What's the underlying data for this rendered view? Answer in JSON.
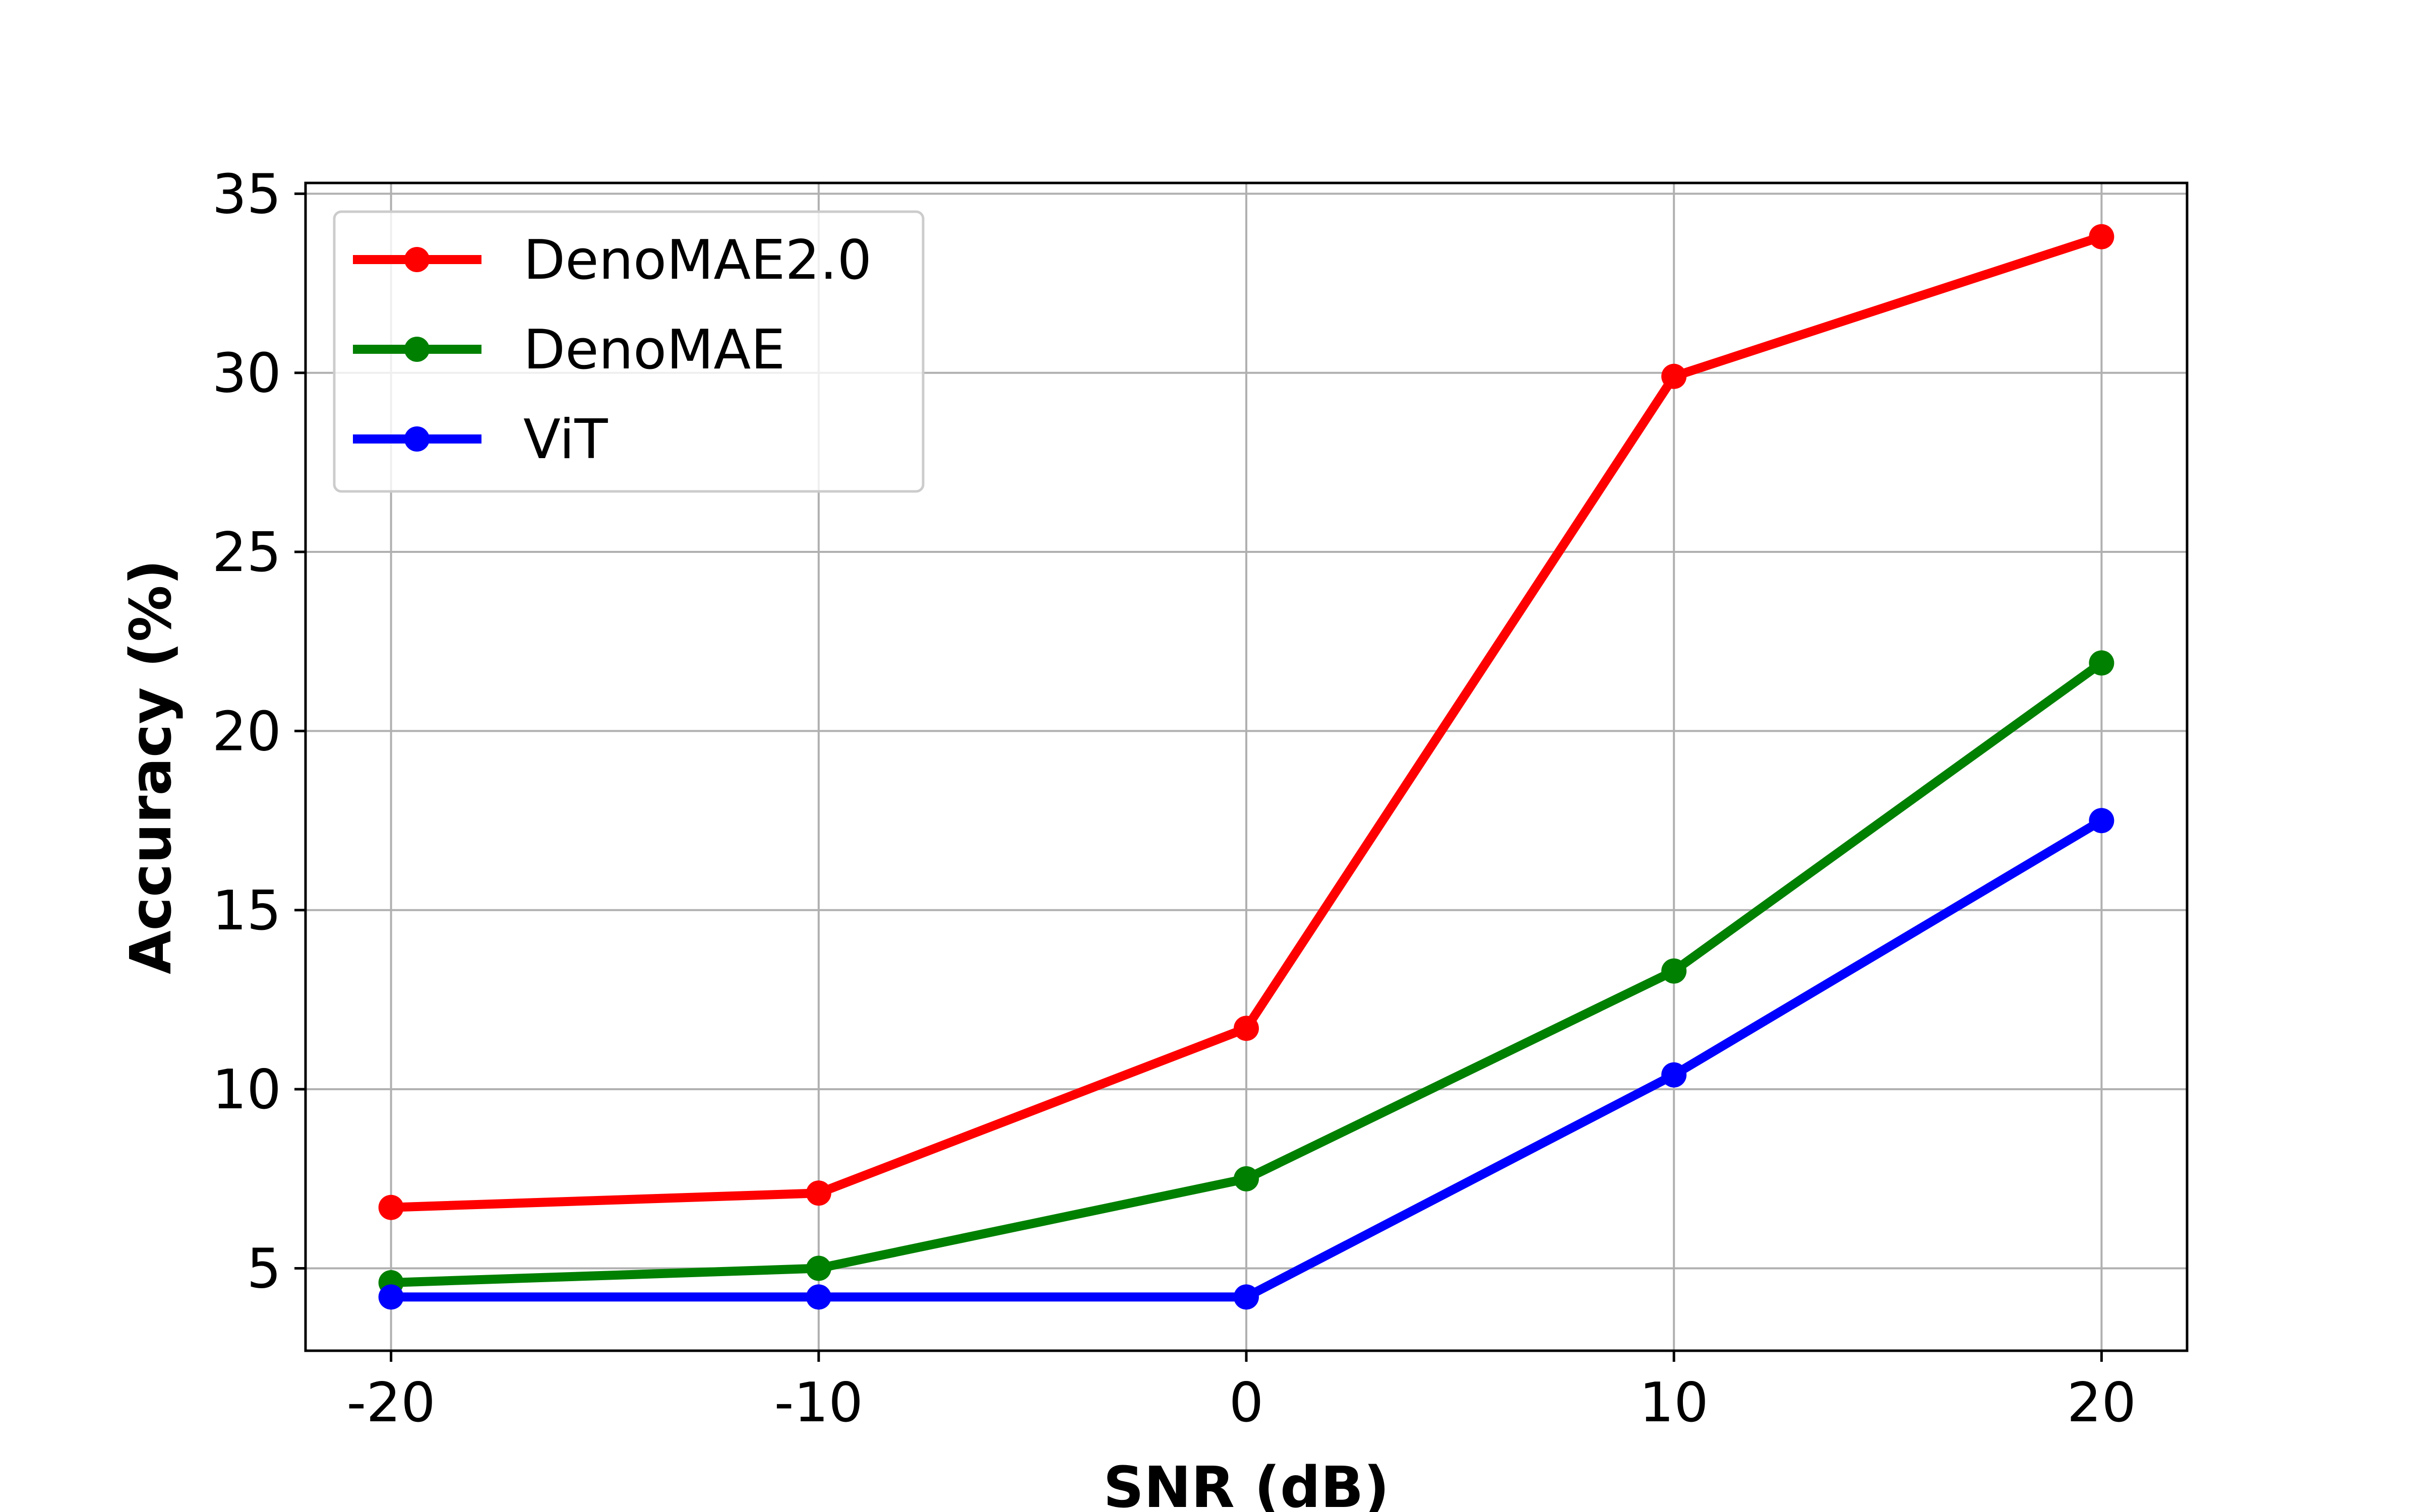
{
  "chart_data": {
    "type": "line",
    "title": "",
    "xlabel": "SNR (dB)",
    "ylabel": "Accuracy (%)",
    "x": [
      -20,
      -10,
      0,
      10,
      20
    ],
    "x_tick_labels": [
      "-20",
      "-10",
      "0",
      "10",
      "20"
    ],
    "y_ticks": [
      5,
      10,
      15,
      20,
      25,
      30,
      35
    ],
    "y_tick_labels": [
      "5",
      "10",
      "15",
      "20",
      "25",
      "30",
      "35"
    ],
    "xlim": [
      -22,
      22
    ],
    "ylim": [
      2.7,
      35.3
    ],
    "grid": true,
    "legend_position": "top-left",
    "series": [
      {
        "name": "DenoMAE2.0",
        "color": "#ff0000",
        "values": [
          6.7,
          7.1,
          11.7,
          29.9,
          33.8
        ]
      },
      {
        "name": "DenoMAE",
        "color": "#008000",
        "values": [
          4.6,
          5.0,
          7.5,
          13.3,
          21.9
        ]
      },
      {
        "name": "ViT",
        "color": "#0000ff",
        "values": [
          4.2,
          4.2,
          4.2,
          10.4,
          17.5
        ]
      }
    ]
  }
}
